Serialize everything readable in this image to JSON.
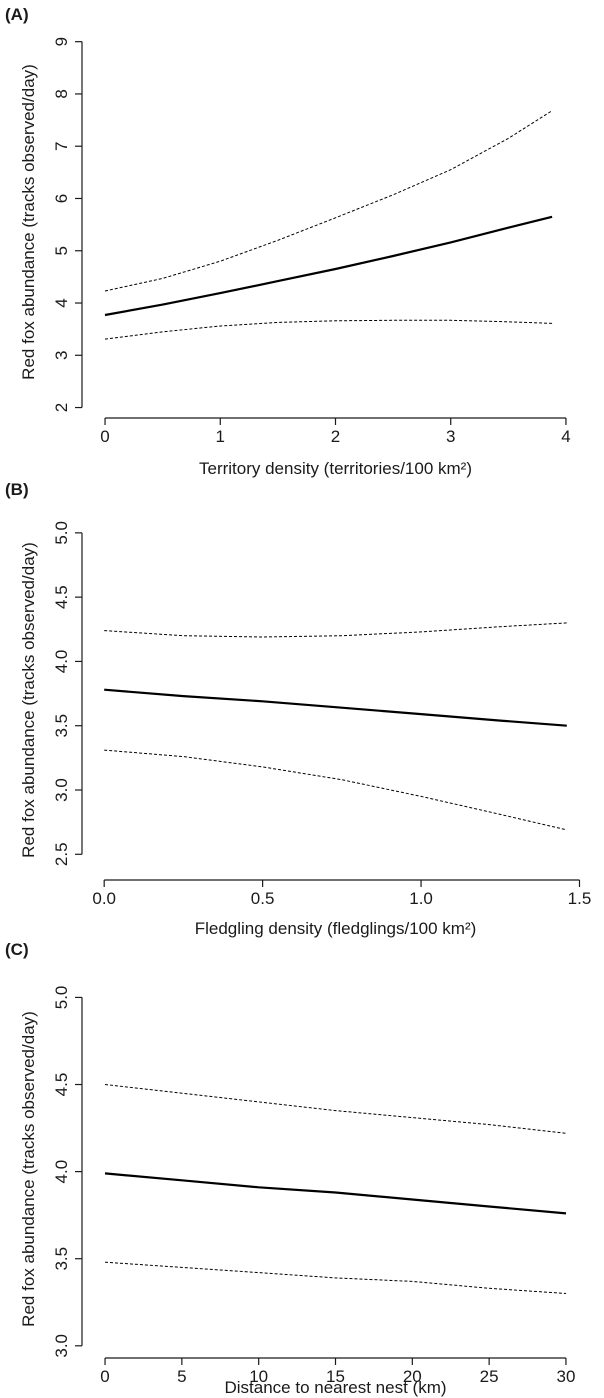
{
  "chart_data": [
    {
      "type": "line",
      "panel_label": "(A)",
      "xlabel": "Territory density (territories/100 km²)",
      "ylabel": "Red fox abundance (tracks observed/day)",
      "xlim": [
        -0.2,
        4.2
      ],
      "ylim": [
        1.8,
        9.3
      ],
      "xticks": [
        0,
        1,
        2,
        3,
        4
      ],
      "yticks": [
        2,
        3,
        4,
        5,
        6,
        7,
        8,
        9
      ],
      "grid": false,
      "series": [
        {
          "role": "fit",
          "style": "solid",
          "x": [
            0,
            0.5,
            1,
            1.5,
            2,
            2.5,
            3,
            3.5,
            3.88
          ],
          "y": [
            3.77,
            3.97,
            4.19,
            4.42,
            4.65,
            4.9,
            5.16,
            5.44,
            5.65
          ]
        },
        {
          "role": "upper",
          "style": "dashed",
          "x": [
            0,
            0.5,
            1,
            1.5,
            2,
            2.5,
            3,
            3.5,
            3.88
          ],
          "y": [
            4.23,
            4.47,
            4.8,
            5.2,
            5.63,
            6.07,
            6.55,
            7.15,
            7.68
          ]
        },
        {
          "role": "lower",
          "style": "dashed",
          "x": [
            0,
            0.5,
            1,
            1.5,
            2,
            2.5,
            3,
            3.5,
            3.88
          ],
          "y": [
            3.31,
            3.45,
            3.56,
            3.63,
            3.66,
            3.67,
            3.67,
            3.64,
            3.61
          ]
        }
      ]
    },
    {
      "type": "line",
      "panel_label": "(B)",
      "xlabel": "Fledgling density (fledglings/100 km²)",
      "ylabel": "Red fox abundance (tracks observed/day)",
      "xlim": [
        -0.07,
        1.53
      ],
      "ylim": [
        2.3,
        5.1
      ],
      "xticks": [
        0.0,
        0.5,
        1.0,
        1.5
      ],
      "ytick_labels": [
        "2.5",
        "3.0",
        "3.5",
        "4.0",
        "4.5",
        "5.0"
      ],
      "yticks": [
        2.5,
        3.0,
        3.5,
        4.0,
        4.5,
        5.0
      ],
      "grid": false,
      "series": [
        {
          "role": "fit",
          "style": "solid",
          "x": [
            0,
            0.25,
            0.5,
            0.75,
            1.0,
            1.25,
            1.46
          ],
          "y": [
            3.78,
            3.73,
            3.69,
            3.64,
            3.59,
            3.54,
            3.5
          ]
        },
        {
          "role": "upper",
          "style": "dashed",
          "x": [
            0,
            0.25,
            0.5,
            0.75,
            1.0,
            1.25,
            1.46
          ],
          "y": [
            4.24,
            4.2,
            4.19,
            4.2,
            4.23,
            4.27,
            4.3
          ]
        },
        {
          "role": "lower",
          "style": "dashed",
          "x": [
            0,
            0.25,
            0.5,
            0.75,
            1.0,
            1.25,
            1.46
          ],
          "y": [
            3.31,
            3.26,
            3.18,
            3.08,
            2.95,
            2.81,
            2.69
          ]
        }
      ]
    },
    {
      "type": "line",
      "panel_label": "(C)",
      "xlabel": "Distance to nearest nest (km)",
      "ylabel": "Red fox abundance (tracks observed/day)",
      "xlim": [
        -1.5,
        31.5
      ],
      "ylim": [
        2.93,
        5.1
      ],
      "xticks": [
        0,
        5,
        10,
        15,
        20,
        25,
        30
      ],
      "ytick_labels": [
        "3.0",
        "3.5",
        "4.0",
        "4.5",
        "5.0"
      ],
      "yticks": [
        3.0,
        3.5,
        4.0,
        4.5,
        5.0
      ],
      "grid": false,
      "series": [
        {
          "role": "fit",
          "style": "solid",
          "x": [
            0,
            5,
            10,
            15,
            20,
            25,
            30
          ],
          "y": [
            3.99,
            3.95,
            3.91,
            3.88,
            3.84,
            3.8,
            3.76
          ]
        },
        {
          "role": "upper",
          "style": "dashed",
          "x": [
            0,
            5,
            10,
            15,
            20,
            25,
            30
          ],
          "y": [
            4.5,
            4.45,
            4.4,
            4.35,
            4.31,
            4.27,
            4.22
          ]
        },
        {
          "role": "lower",
          "style": "dashed",
          "x": [
            0,
            5,
            10,
            15,
            20,
            25,
            30
          ],
          "y": [
            3.48,
            3.45,
            3.42,
            3.39,
            3.37,
            3.33,
            3.3
          ]
        }
      ]
    }
  ]
}
